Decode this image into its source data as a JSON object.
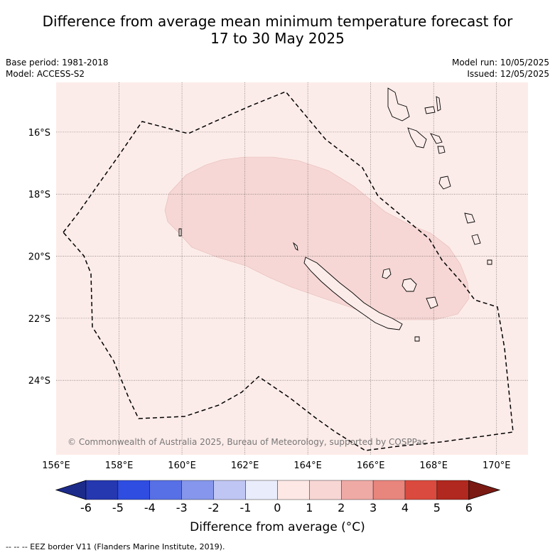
{
  "title_line1": "Difference from average mean minimum temperature forecast for",
  "title_line2": "17 to 30 May 2025",
  "base_period": "Base period: 1981-2018",
  "model": "Model: ACCESS-S2",
  "model_run": "Model run: 10/05/2025",
  "issued": "Issued: 12/05/2025",
  "copyright": "© Commonwealth of Australia 2025, Bureau of Meteorology, supported by COSPPac",
  "footnote": "--  --  -- EEZ border V11 (Flanders Marine Institute, 2019).",
  "chart_data": {
    "type": "heatmap",
    "lon_range": [
      156,
      171
    ],
    "lat_range": [
      -26.4,
      -14.4
    ],
    "lon_ticks": [
      "156°E",
      "158°E",
      "160°E",
      "162°E",
      "164°E",
      "166°E",
      "168°E",
      "170°E"
    ],
    "lon_tick_values": [
      156,
      158,
      160,
      162,
      164,
      166,
      168,
      170
    ],
    "lat_ticks": [
      "16°S",
      "18°S",
      "20°S",
      "22°S",
      "24°S"
    ],
    "lat_tick_values": [
      -16,
      -18,
      -20,
      -22,
      -24
    ],
    "background_anomaly_range": "0 to 1",
    "anomaly_region_range": "1 to 2",
    "colorbar": {
      "title": "Difference from average ($^\\circ$C)",
      "title_display": "Difference from average (°C)",
      "levels": [
        "-6",
        "-5",
        "-4",
        "-3",
        "-2",
        "-1",
        "0",
        "1",
        "2",
        "3",
        "4",
        "5",
        "6"
      ],
      "colors": [
        "#1c2a8a",
        "#2538b0",
        "#2f4de0",
        "#5870e6",
        "#8596ec",
        "#c0c6f4",
        "#e9ecfb",
        "#fde8e6",
        "#f7d6d4",
        "#f0aaa5",
        "#e8857d",
        "#db4a3e",
        "#b0281f",
        "#7a1a13"
      ]
    }
  }
}
